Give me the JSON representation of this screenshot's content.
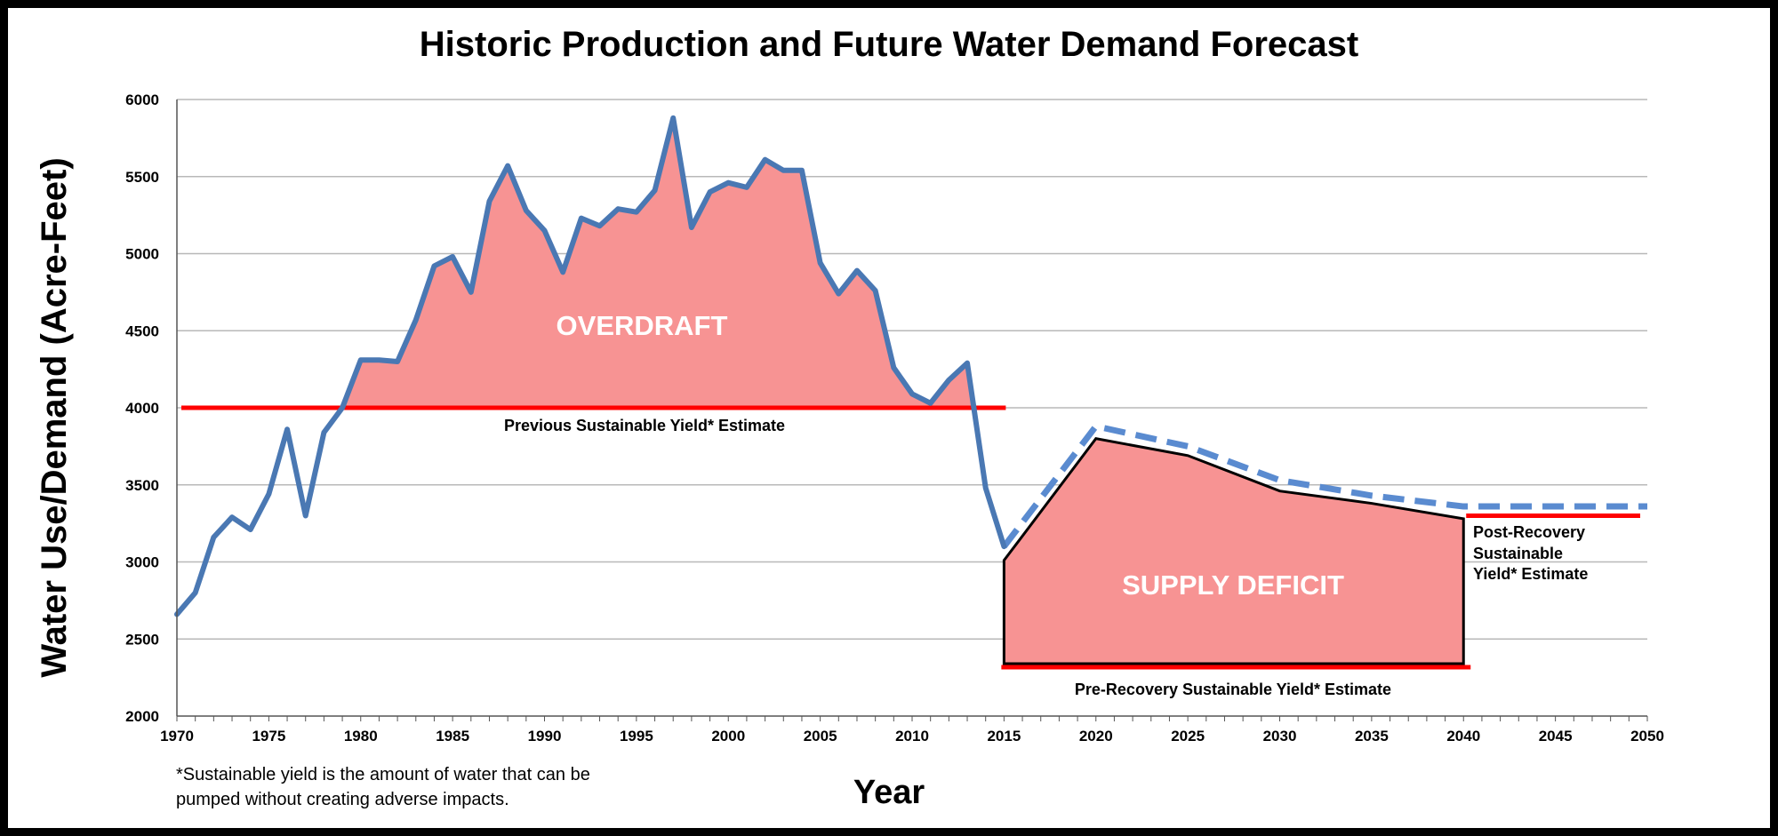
{
  "chart_data": {
    "type": "line",
    "title": "Historic Production and Future Water Demand Forecast",
    "xlabel": "Year",
    "ylabel": "Water Use/Demand (Acre-Feet)",
    "xlim": [
      1970,
      2050
    ],
    "ylim": [
      2000,
      6000
    ],
    "grid": true,
    "x_ticks": [
      1970,
      1975,
      1980,
      1985,
      1990,
      1995,
      2000,
      2005,
      2010,
      2015,
      2020,
      2025,
      2030,
      2035,
      2040,
      2045,
      2050
    ],
    "y_ticks": [
      2000,
      2500,
      3000,
      3500,
      4000,
      4500,
      5000,
      5500,
      6000
    ],
    "historic": {
      "color": "#4a78b3",
      "x": [
        1970,
        1971,
        1972,
        1973,
        1974,
        1975,
        1976,
        1977,
        1978,
        1979,
        1980,
        1981,
        1982,
        1983,
        1984,
        1985,
        1986,
        1987,
        1988,
        1989,
        1990,
        1991,
        1992,
        1993,
        1994,
        1995,
        1996,
        1997,
        1998,
        1999,
        2000,
        2001,
        2002,
        2003,
        2004,
        2005,
        2006,
        2007,
        2008,
        2009,
        2010,
        2011,
        2012,
        2013,
        2014,
        2015
      ],
      "y": [
        2660,
        2800,
        3160,
        3290,
        3210,
        3440,
        3860,
        3300,
        3840,
        4000,
        4310,
        4310,
        4300,
        4570,
        4920,
        4980,
        4750,
        5340,
        5570,
        5280,
        5150,
        4880,
        5230,
        5180,
        5290,
        5270,
        5410,
        5880,
        5170,
        5400,
        5460,
        5430,
        5610,
        5540,
        5540,
        4940,
        4740,
        4890,
        4760,
        4260,
        4090,
        4030,
        4180,
        4290,
        3480,
        3100
      ]
    },
    "forecast": {
      "color": "#5a8bd0",
      "style": "dashed",
      "x": [
        2015,
        2020,
        2025,
        2030,
        2035,
        2040,
        2045,
        2050
      ],
      "y": [
        3100,
        3880,
        3750,
        3530,
        3430,
        3360,
        3360,
        3360
      ]
    },
    "supply_deficit_upper": {
      "x": [
        2015,
        2015,
        2020,
        2025,
        2030,
        2035,
        2040,
        2040
      ],
      "y": [
        2340,
        3010,
        3800,
        3690,
        3460,
        3380,
        3280,
        2340
      ]
    },
    "previous_yield": {
      "value": 4000,
      "x_range": [
        1970,
        2015
      ],
      "color": "#ff0000"
    },
    "pre_recovery_yield": {
      "value": 2300,
      "x_range": [
        2015,
        2040
      ],
      "color": "#ff0000"
    },
    "post_recovery_yield": {
      "value": 3300,
      "x_range": [
        2040,
        2050
      ],
      "color": "#ff0000"
    },
    "fill_color": "#f79393"
  },
  "labels": {
    "overdraft": "OVERDRAFT",
    "supply_deficit": "SUPPLY DEFICIT",
    "previous_yield": "Previous Sustainable Yield* Estimate",
    "pre_recovery_yield": "Pre-Recovery Sustainable Yield* Estimate",
    "post_recovery_line1": "Post-Recovery",
    "post_recovery_line2": "Sustainable",
    "post_recovery_line3": "Yield* Estimate",
    "footnote_line1": "*Sustainable yield is the amount of water that can be",
    "footnote_line2": "pumped without creating adverse impacts."
  }
}
